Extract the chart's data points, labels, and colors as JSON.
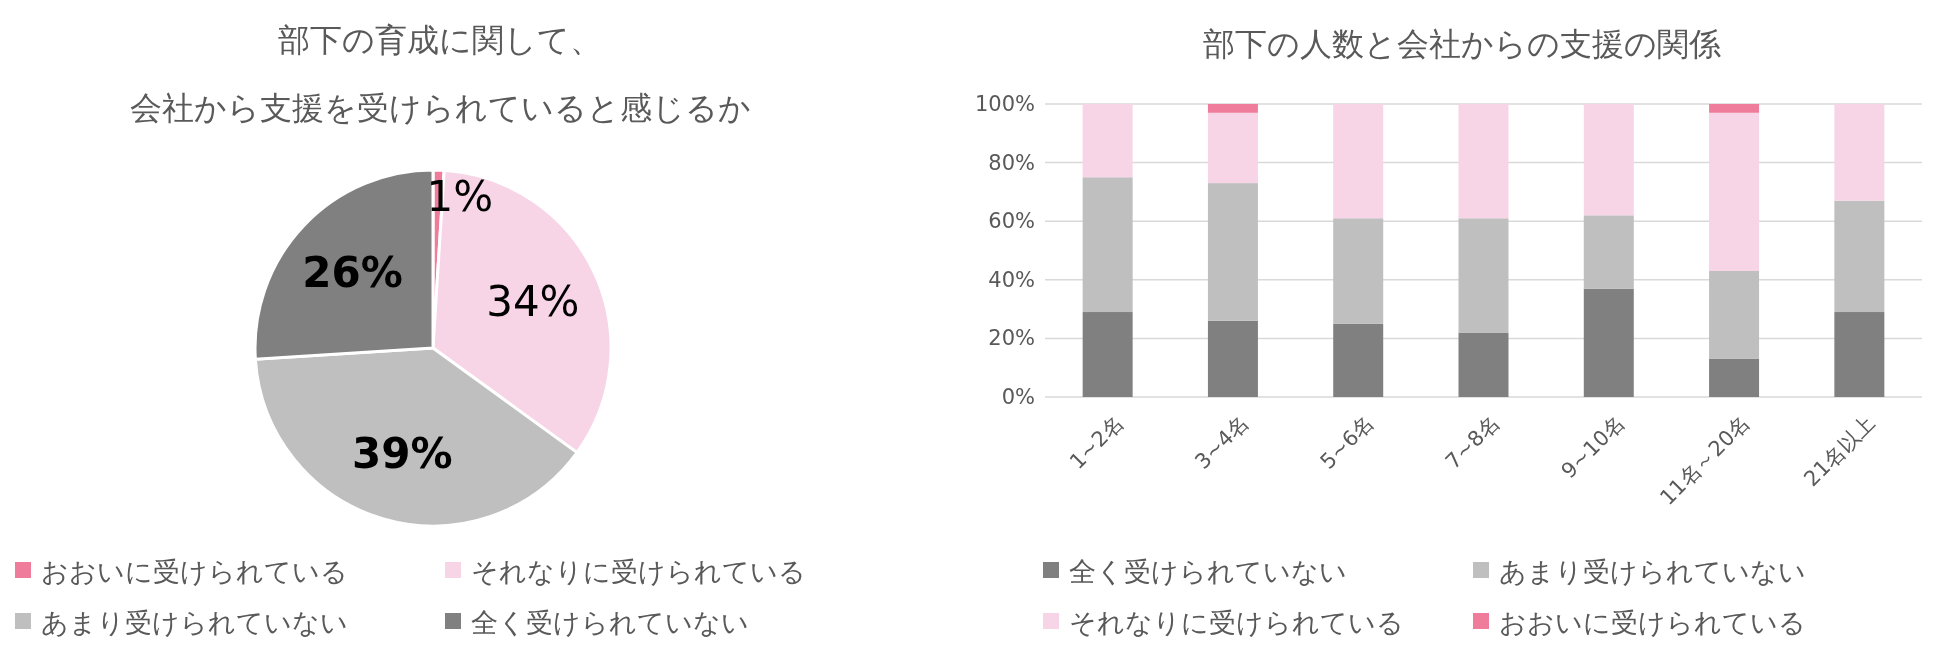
{
  "chart_data": [
    {
      "type": "pie",
      "title": "部下の育成に関して、会社から支援を受けられていると感じるか",
      "categories": [
        "おおいに受けられている",
        "それなりに受けられている",
        "あまり受けられていない",
        "全く受けられていない"
      ],
      "values": [
        1,
        34,
        39,
        26
      ],
      "colors": [
        "#f07c9c",
        "#f7d5e6",
        "#bfbfbf",
        "#808080"
      ],
      "value_labels": [
        "1%",
        "34%",
        "39%",
        "26%"
      ],
      "legend": "bottom"
    },
    {
      "type": "bar",
      "title": "部下の人数と会社からの支援の関係",
      "stacked": true,
      "categories": [
        "1~2名",
        "3~4名",
        "5~6名",
        "7~8名",
        "9~10名",
        "11名～20名",
        "21名以上"
      ],
      "series": [
        {
          "name": "全く受けられていない",
          "color": "#808080",
          "values": [
            29,
            26,
            25,
            22,
            37,
            13,
            29
          ]
        },
        {
          "name": "あまり受けられていない",
          "color": "#bfbfbf",
          "values": [
            46,
            47,
            36,
            39,
            25,
            30,
            38
          ]
        },
        {
          "name": "それなりに受けられている",
          "color": "#f7d5e6",
          "values": [
            25,
            24,
            39,
            39,
            38,
            54,
            33
          ]
        },
        {
          "name": "おおいに受けられている",
          "color": "#f07c9c",
          "values": [
            0,
            3,
            0,
            0,
            0,
            3,
            0
          ]
        }
      ],
      "ylim": [
        0,
        100
      ],
      "yticks": [
        {
          "value": 0,
          "label": "0%"
        },
        {
          "value": 20,
          "label": "20%"
        },
        {
          "value": 40,
          "label": "40%"
        },
        {
          "value": 60,
          "label": "60%"
        },
        {
          "value": 80,
          "label": "80%"
        },
        {
          "value": 100,
          "label": "100%"
        }
      ],
      "grid": "y",
      "legend": "bottom"
    }
  ]
}
